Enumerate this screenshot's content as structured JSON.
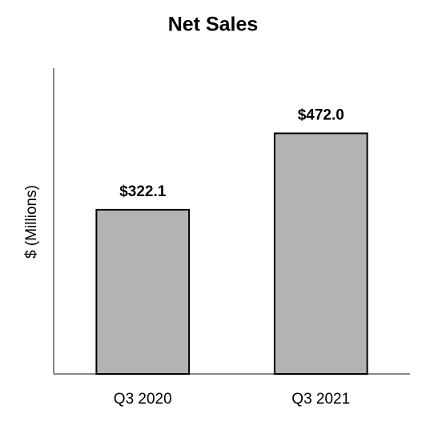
{
  "chart_data": {
    "type": "bar",
    "title": "Net Sales",
    "ylabel": "$ (Millions)",
    "categories": [
      "Q3 2020",
      "Q3 2021"
    ],
    "values": [
      322.1,
      472.0
    ],
    "value_labels": [
      "$322.1",
      "$472.0"
    ],
    "color": "#b3b3b3",
    "ylim": [
      0,
      600
    ],
    "grid": false
  }
}
